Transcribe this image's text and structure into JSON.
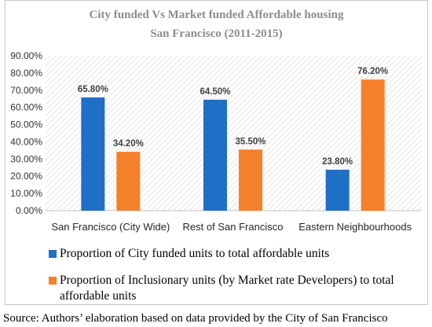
{
  "chart_data": {
    "type": "bar",
    "title": "City funded Vs Market funded Affordable housing",
    "subtitle": "San Francisco (2011-2015)",
    "categories": [
      "San Francisco (City Wide)",
      "Rest of San Francisco",
      "Eastern Neighbourhoods"
    ],
    "series": [
      {
        "name": "Proportion of City funded units to total affordable units",
        "values": [
          65.8,
          64.5,
          23.8
        ],
        "data_labels": [
          "65.80%",
          "64.50%",
          "23.80%"
        ],
        "color": "#1f6fc6"
      },
      {
        "name": "Proportion of Inclusionary units (by Market rate Developers) to total affordable units",
        "values": [
          34.2,
          35.5,
          76.2
        ],
        "data_labels": [
          "34.20%",
          "35.50%",
          "76.20%"
        ],
        "color": "#f5802a"
      }
    ],
    "ylim": [
      0,
      90
    ],
    "yticks": [
      0,
      10,
      20,
      30,
      40,
      50,
      60,
      70,
      80,
      90
    ],
    "ytick_labels": [
      "0.00%",
      "10.00%",
      "20.00%",
      "30.00%",
      "40.00%",
      "50.00%",
      "60.00%",
      "70.00%",
      "80.00%",
      "90.00%"
    ],
    "grid": false,
    "legend": "bottom"
  },
  "source": "Source: Authors’ elaboration based on data provided by the City of San Francisco"
}
